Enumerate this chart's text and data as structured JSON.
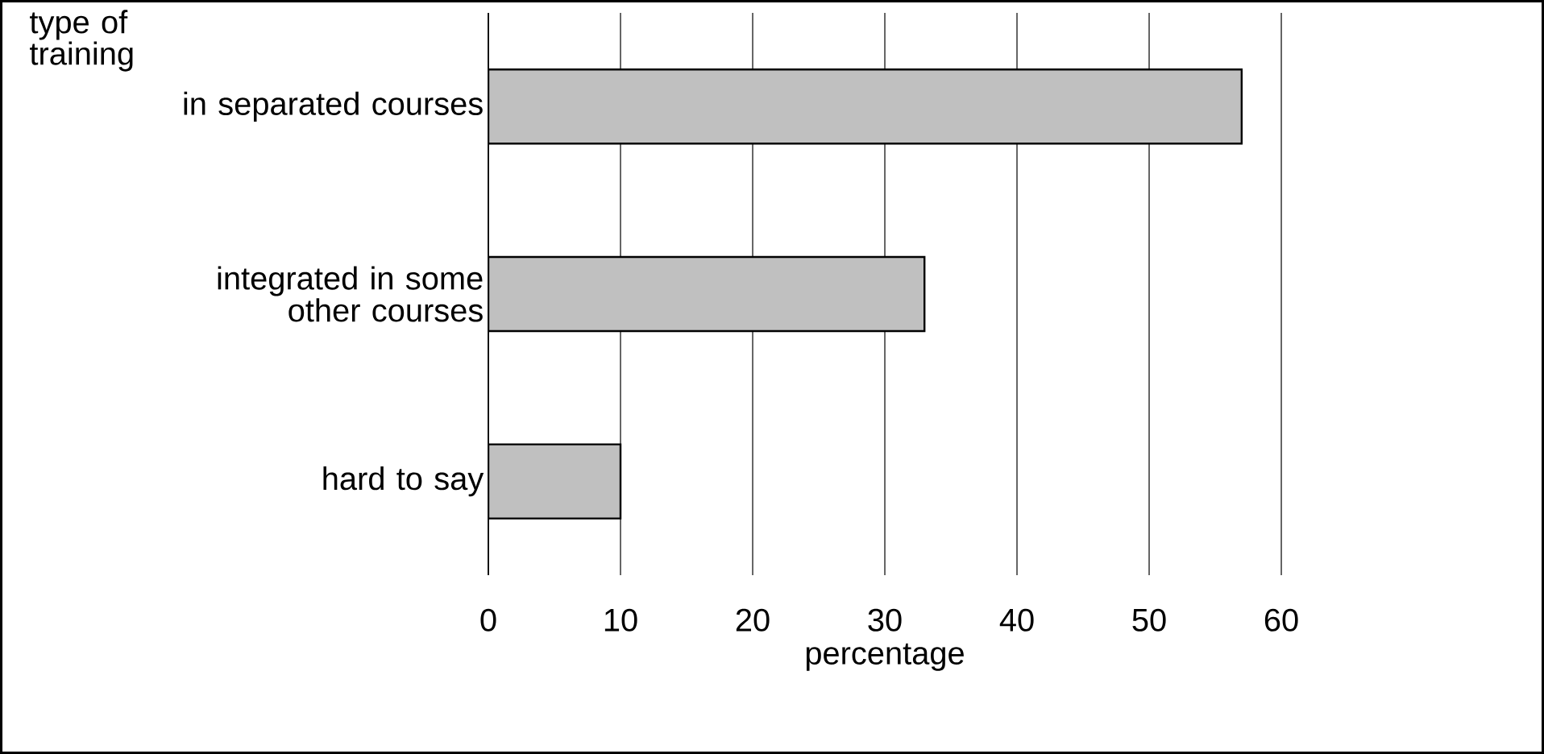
{
  "chart_data": {
    "type": "bar",
    "orientation": "horizontal",
    "ylabel": "type of training",
    "xlabel": "percentage",
    "categories": [
      "in separated courses",
      "integrated in some other courses",
      "hard to say"
    ],
    "values": [
      57,
      33,
      10
    ],
    "color": "#c0c0c0",
    "xlim": [
      0,
      60
    ],
    "xticks": [
      0,
      10,
      20,
      30,
      40,
      50,
      60
    ],
    "grid": "x"
  }
}
